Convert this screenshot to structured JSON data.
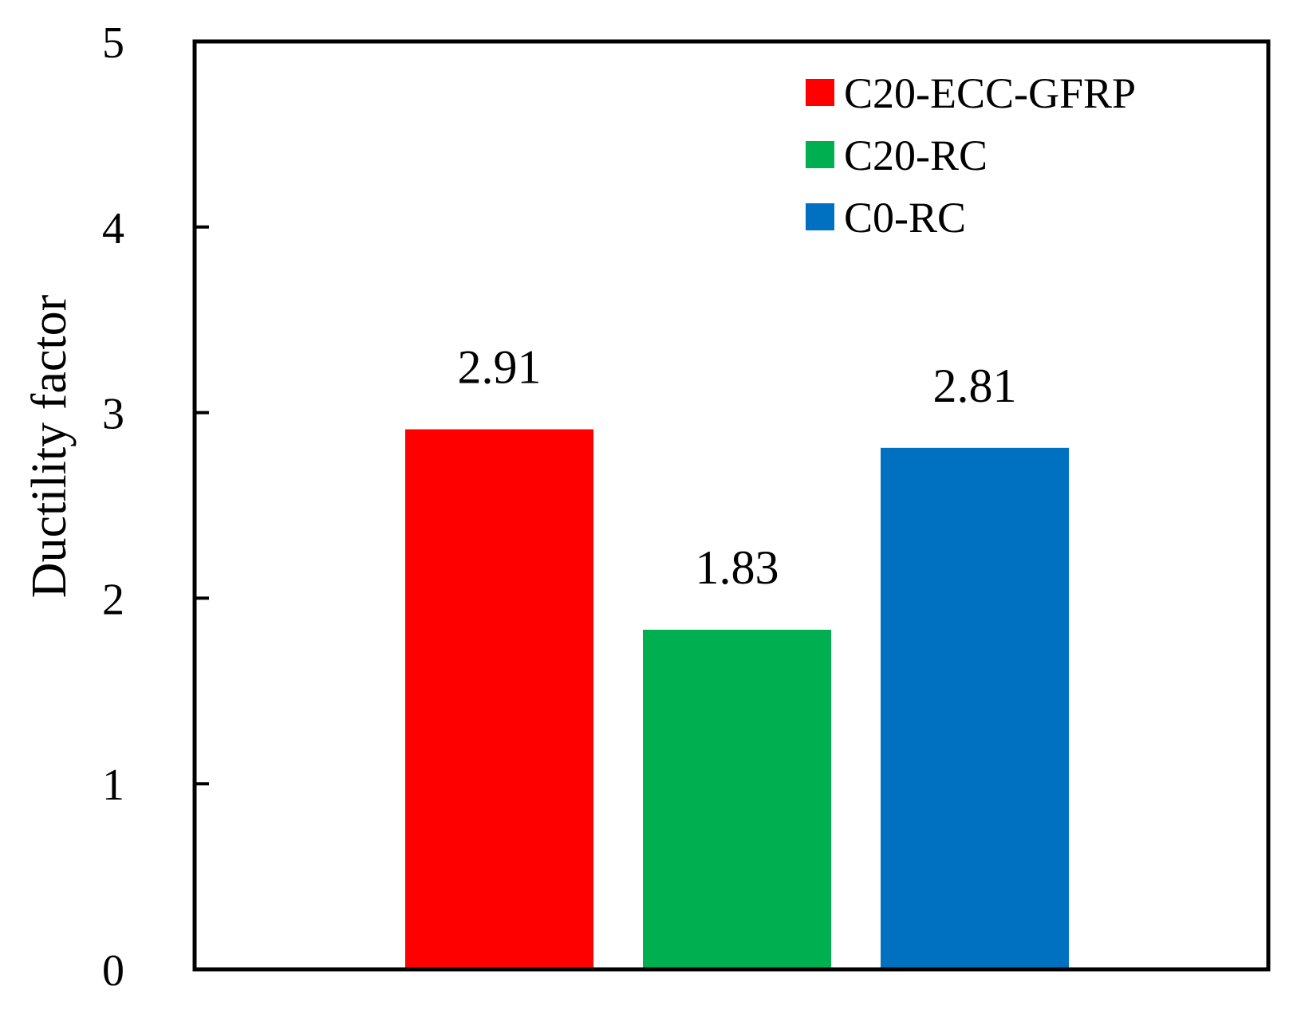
{
  "chart_data": {
    "type": "bar",
    "title": "",
    "xlabel": "",
    "ylabel": "Ductility factor",
    "ylim": [
      0,
      5
    ],
    "yticks": [
      0,
      1,
      2,
      3,
      4,
      5
    ],
    "grid": false,
    "legend_position": "top-right",
    "series": [
      {
        "name": "C20-ECC-GFRP",
        "value": 2.91,
        "label": "2.91",
        "color": "#FF0000"
      },
      {
        "name": "C20-RC",
        "value": 1.83,
        "label": "1.83",
        "color": "#00B050"
      },
      {
        "name": "C0-RC",
        "value": 2.81,
        "label": "2.81",
        "color": "#0070C0"
      }
    ]
  }
}
